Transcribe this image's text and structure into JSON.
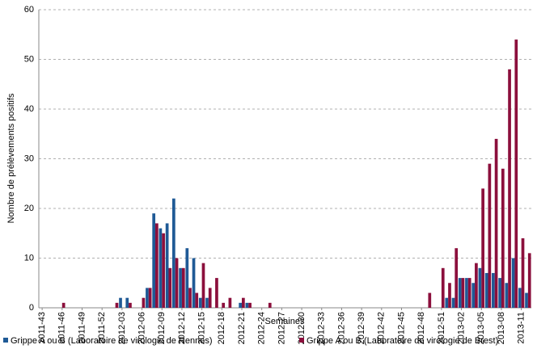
{
  "chart_data": {
    "type": "bar",
    "x_label": "Semaines",
    "y_label": "Nombre de prélèvements positifs",
    "categories": [
      "2011-43",
      null,
      null,
      "2011-46",
      null,
      null,
      "2011-49",
      null,
      null,
      "2011-52",
      null,
      null,
      "2012-03",
      null,
      null,
      "2012-06",
      null,
      null,
      "2012-09",
      null,
      null,
      "2012-12",
      null,
      null,
      "2012-15",
      null,
      null,
      "2012-18",
      null,
      null,
      "2012-21",
      null,
      null,
      "2012-24",
      null,
      null,
      "2012-27",
      null,
      null,
      "2012-30",
      null,
      null,
      "2012-33",
      null,
      null,
      "2012-36",
      null,
      null,
      "2012-39",
      null,
      null,
      "2012-42",
      null,
      null,
      "2012-45",
      null,
      null,
      "2012-48",
      null,
      null,
      "2012-51",
      null,
      null,
      "2013-02",
      null,
      null,
      "2013-05",
      null,
      null,
      "2013-08",
      null,
      null,
      "2013-11",
      null
    ],
    "series": [
      {
        "name": "Grippe A ou B (Laboratoire de virologie de Rennes)",
        "color": "#1f5a96",
        "values": [
          0,
          0,
          0,
          0,
          0,
          0,
          0,
          0,
          0,
          0,
          0,
          0,
          2,
          2,
          0,
          0,
          4,
          19,
          16,
          17,
          22,
          8,
          12,
          10,
          2,
          2,
          0,
          0,
          0,
          0,
          1,
          1,
          0,
          0,
          0,
          0,
          0,
          0,
          0,
          0,
          0,
          0,
          0,
          0,
          0,
          0,
          0,
          0,
          0,
          0,
          0,
          0,
          0,
          0,
          0,
          0,
          0,
          0,
          0,
          0,
          0,
          2,
          2,
          6,
          6,
          5,
          8,
          7,
          7,
          6,
          5,
          10,
          4,
          3
        ]
      },
      {
        "name": "Grippe A ou B (Laboratoire de virologie de Brest)",
        "color": "#8b0f3c",
        "values": [
          0,
          0,
          0,
          1,
          0,
          0,
          0,
          0,
          0,
          0,
          0,
          1,
          0,
          1,
          0,
          2,
          4,
          17,
          15,
          8,
          10,
          8,
          4,
          3,
          9,
          4,
          6,
          1,
          2,
          0,
          2,
          1,
          0,
          0,
          1,
          0,
          0,
          0,
          0,
          0,
          0,
          0,
          0,
          0,
          0,
          0,
          0,
          0,
          0,
          0,
          0,
          0,
          0,
          0,
          0,
          0,
          0,
          0,
          3,
          0,
          8,
          5,
          12,
          6,
          6,
          9,
          24,
          29,
          34,
          28,
          48,
          54,
          14,
          11
        ]
      }
    ],
    "ylim": [
      0,
      60
    ],
    "yticks": [
      0,
      10,
      20,
      30,
      40,
      50,
      60
    ],
    "grid": true,
    "legend": "bottom"
  }
}
